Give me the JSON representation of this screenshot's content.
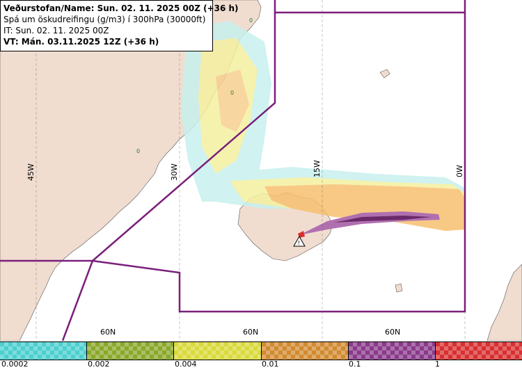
{
  "header": {
    "line1": "Veðurstofan/Name: Sun. 02. 11. 2025 00Z (+36 h)",
    "line2": "Spá um öskudreifingu (g/m3) í 300hPa (30000ft)",
    "line3": "IT: Sun. 02. 11. 2025 00Z",
    "line4": "VT: Mán. 03.11.2025 12Z (+36 h)"
  },
  "map": {
    "lon_labels": [
      "45W",
      "30W",
      "15W",
      "0W"
    ],
    "lat_labels": [
      "60N",
      "60N",
      "60N"
    ],
    "land_color": "#f0ddd0",
    "boundary_color": "#7a1f7a",
    "volcano_icon": "warning-triangle-icon"
  },
  "legend": {
    "labels": [
      "0.0002",
      "0.002",
      "0.004",
      "0.01",
      "0.1",
      "1"
    ],
    "colors": [
      "#4ccfcf",
      "#8aa82a",
      "#d9d93a",
      "#d18a30",
      "#8a3a8a",
      "#d83030"
    ]
  }
}
